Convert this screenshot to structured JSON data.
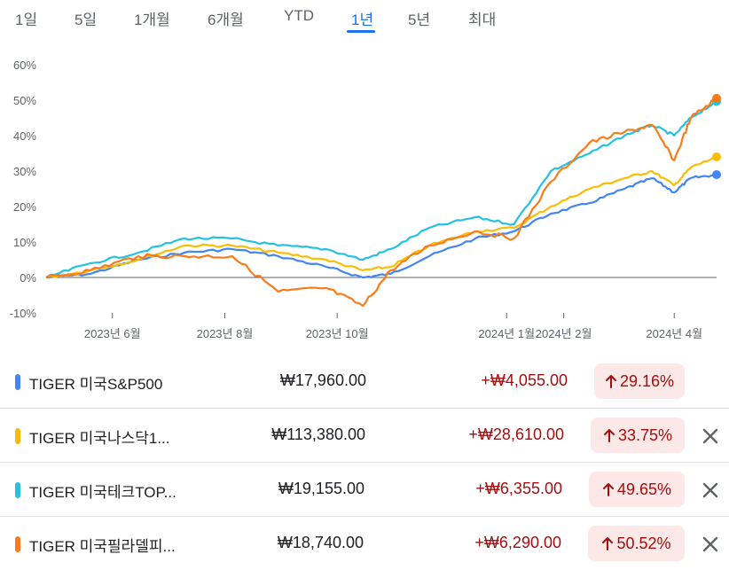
{
  "tabs": [
    {
      "label": "1일",
      "active": false
    },
    {
      "label": "5일",
      "active": false
    },
    {
      "label": "1개월",
      "active": false
    },
    {
      "label": "6개월",
      "active": false
    },
    {
      "label": "YTD",
      "active": false
    },
    {
      "label": "1년",
      "active": true
    },
    {
      "label": "5년",
      "active": false
    },
    {
      "label": "최대",
      "active": false
    }
  ],
  "rows": [
    {
      "name": "TIGER 미국S&P500",
      "price": "₩17,960.00",
      "change": "+₩4,055.00",
      "pct": "29.16%",
      "arrow_icon": "arrow-up-icon",
      "color": "#4285f4",
      "removable": false
    },
    {
      "name": "TIGER 미국나스닥1...",
      "price": "₩113,380.00",
      "change": "+₩28,610.00",
      "pct": "33.75%",
      "arrow_icon": "arrow-up-icon",
      "color": "#fbbc04",
      "removable": true
    },
    {
      "name": "TIGER 미국테크TOP...",
      "price": "₩19,155.00",
      "change": "+₩6,355.00",
      "pct": "49.65%",
      "arrow_icon": "arrow-up-icon",
      "color": "#24c1e0",
      "removable": true
    },
    {
      "name": "TIGER 미국필라델피...",
      "price": "₩18,740.00",
      "change": "+₩6,290.00",
      "pct": "50.52%",
      "arrow_icon": "arrow-up-icon",
      "color": "#fa7b17",
      "removable": true
    }
  ],
  "chart_data": {
    "type": "line",
    "ylim": [
      -10,
      60
    ],
    "y_ticks": [
      "60%",
      "50%",
      "40%",
      "30%",
      "20%",
      "10%",
      "0%",
      "-10%"
    ],
    "y_tick_values": [
      60,
      50,
      40,
      30,
      20,
      10,
      0,
      -10
    ],
    "x_ticks": [
      "2023년 6월",
      "2023년 8월",
      "2023년 10월",
      "2024년 1월",
      "2024년 2월",
      "2024년 4월"
    ],
    "x_tick_dates": [
      "2023-06-01",
      "2023-08-01",
      "2023-10-01",
      "2024-01-01",
      "2024-02-01",
      "2024-04-01"
    ],
    "x_range": [
      "2023-04-26",
      "2024-04-24"
    ],
    "grid": false,
    "baseline": 0,
    "series": [
      {
        "name": "TIGER 미국S&P500",
        "color": "#4285f4",
        "x": [
          "2023-04-26",
          "2023-05-20",
          "2023-06-15",
          "2023-07-10",
          "2023-08-05",
          "2023-08-30",
          "2023-09-25",
          "2023-10-15",
          "2023-10-30",
          "2023-11-20",
          "2023-12-15",
          "2024-01-05",
          "2024-01-25",
          "2024-02-15",
          "2024-03-05",
          "2024-03-20",
          "2024-04-01",
          "2024-04-10",
          "2024-04-24"
        ],
        "y": [
          0,
          1,
          5,
          7,
          8,
          6,
          3,
          0,
          1,
          6,
          11,
          13,
          18,
          21,
          25,
          28,
          24,
          28,
          29
        ]
      },
      {
        "name": "TIGER 미국나스닥1...",
        "color": "#fbbc04",
        "x": [
          "2023-04-26",
          "2023-05-20",
          "2023-06-15",
          "2023-07-10",
          "2023-08-05",
          "2023-08-30",
          "2023-09-25",
          "2023-10-15",
          "2023-10-30",
          "2023-11-20",
          "2023-12-15",
          "2024-01-05",
          "2024-01-25",
          "2024-02-15",
          "2024-03-05",
          "2024-03-20",
          "2024-04-01",
          "2024-04-10",
          "2024-04-24"
        ],
        "y": [
          0,
          2,
          5,
          9,
          9,
          7,
          5,
          2,
          3,
          9,
          13,
          14,
          20,
          25,
          28,
          30,
          26,
          31,
          34
        ]
      },
      {
        "name": "TIGER 미국테크TOP...",
        "color": "#24c1e0",
        "x": [
          "2023-04-26",
          "2023-05-20",
          "2023-06-15",
          "2023-07-10",
          "2023-08-05",
          "2023-08-30",
          "2023-09-25",
          "2023-10-15",
          "2023-10-30",
          "2023-11-20",
          "2023-12-15",
          "2024-01-05",
          "2024-01-25",
          "2024-02-15",
          "2024-03-05",
          "2024-03-20",
          "2024-04-01",
          "2024-04-10",
          "2024-04-24"
        ],
        "y": [
          0,
          4,
          7,
          11,
          11,
          9,
          8,
          5,
          8,
          14,
          17,
          15,
          30,
          35,
          40,
          43,
          40,
          45,
          49.65
        ]
      },
      {
        "name": "TIGER 미국필라델피...",
        "color": "#fa7b17",
        "x": [
          "2023-04-26",
          "2023-05-20",
          "2023-06-15",
          "2023-07-10",
          "2023-08-05",
          "2023-08-30",
          "2023-09-25",
          "2023-10-15",
          "2023-10-30",
          "2023-11-20",
          "2023-12-15",
          "2024-01-05",
          "2024-01-25",
          "2024-02-15",
          "2024-03-05",
          "2024-03-20",
          "2024-04-01",
          "2024-04-10",
          "2024-04-24"
        ],
        "y": [
          0,
          2,
          6,
          6,
          6,
          -4,
          -3,
          -8,
          2,
          9,
          13,
          11,
          27,
          38,
          41,
          43,
          33,
          45,
          50.52
        ]
      }
    ]
  }
}
